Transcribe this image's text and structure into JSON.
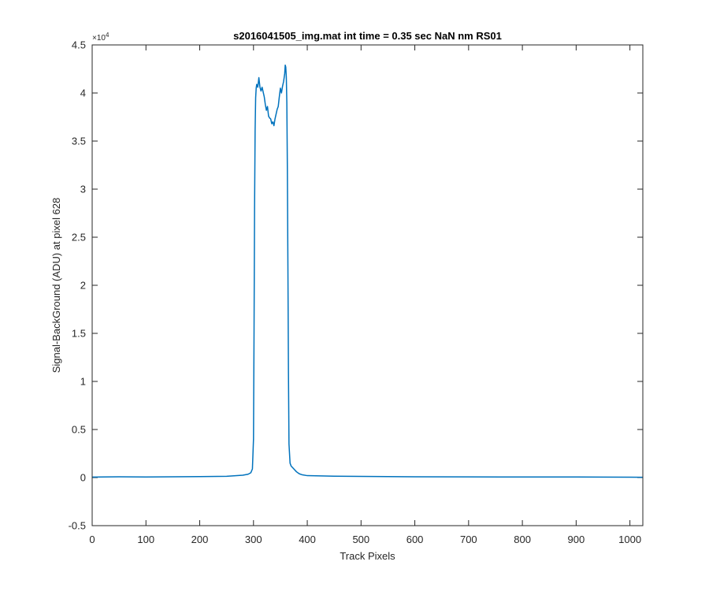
{
  "chart_data": {
    "type": "line",
    "title": "s2016041505_img.mat int time = 0.35 sec  NaN nm RS01",
    "xlabel": "Track Pixels",
    "ylabel": "Signal-BackGround (ADU) at pixel 628",
    "y_exponent_label": "×10",
    "y_exponent_power": "4",
    "xlim": [
      0,
      1024
    ],
    "ylim": [
      -0.5,
      4.5
    ],
    "y_multiplier": 10000,
    "grid": false,
    "line_color": "#0072BD",
    "x_ticks": [
      0,
      100,
      200,
      300,
      400,
      500,
      600,
      700,
      800,
      900,
      1000
    ],
    "x_tick_labels": [
      "0",
      "100",
      "200",
      "300",
      "400",
      "500",
      "600",
      "700",
      "800",
      "900",
      "1000"
    ],
    "y_ticks": [
      -0.5,
      0,
      0.5,
      1,
      1.5,
      2,
      2.5,
      3,
      3.5,
      4,
      4.5
    ],
    "y_tick_labels": [
      "-0.5",
      "0",
      "0.5",
      "1",
      "1.5",
      "2",
      "2.5",
      "3",
      "3.5",
      "4",
      "4.5"
    ],
    "series": [
      {
        "x": [
          0,
          50,
          100,
          150,
          200,
          250,
          280,
          290,
          295,
          298,
          300,
          301,
          302,
          303,
          304,
          305,
          306,
          308,
          310,
          312,
          314,
          316,
          318,
          320,
          322,
          324,
          326,
          328,
          330,
          332,
          334,
          336,
          338,
          340,
          342,
          344,
          346,
          348,
          350,
          352,
          354,
          356,
          358,
          359,
          360,
          361,
          362,
          363,
          364,
          365,
          366,
          368,
          370,
          375,
          380,
          385,
          390,
          400,
          450,
          500,
          600,
          700,
          800,
          900,
          1000,
          1024
        ],
        "y": [
          0.005,
          0.008,
          0.006,
          0.008,
          0.01,
          0.013,
          0.025,
          0.035,
          0.05,
          0.09,
          0.4,
          1.5,
          2.8,
          3.6,
          3.95,
          4.05,
          4.09,
          4.06,
          4.16,
          4.06,
          4.02,
          4.06,
          4.01,
          3.96,
          3.88,
          3.82,
          3.86,
          3.76,
          3.74,
          3.73,
          3.68,
          3.7,
          3.66,
          3.73,
          3.78,
          3.83,
          3.86,
          3.96,
          4.05,
          4.0,
          4.07,
          4.12,
          4.2,
          4.29,
          4.27,
          4.17,
          3.9,
          3.2,
          2.2,
          1.1,
          0.35,
          0.15,
          0.12,
          0.09,
          0.06,
          0.04,
          0.03,
          0.02,
          0.014,
          0.012,
          0.008,
          0.007,
          0.006,
          0.006,
          0.004,
          0.003
        ]
      }
    ]
  }
}
